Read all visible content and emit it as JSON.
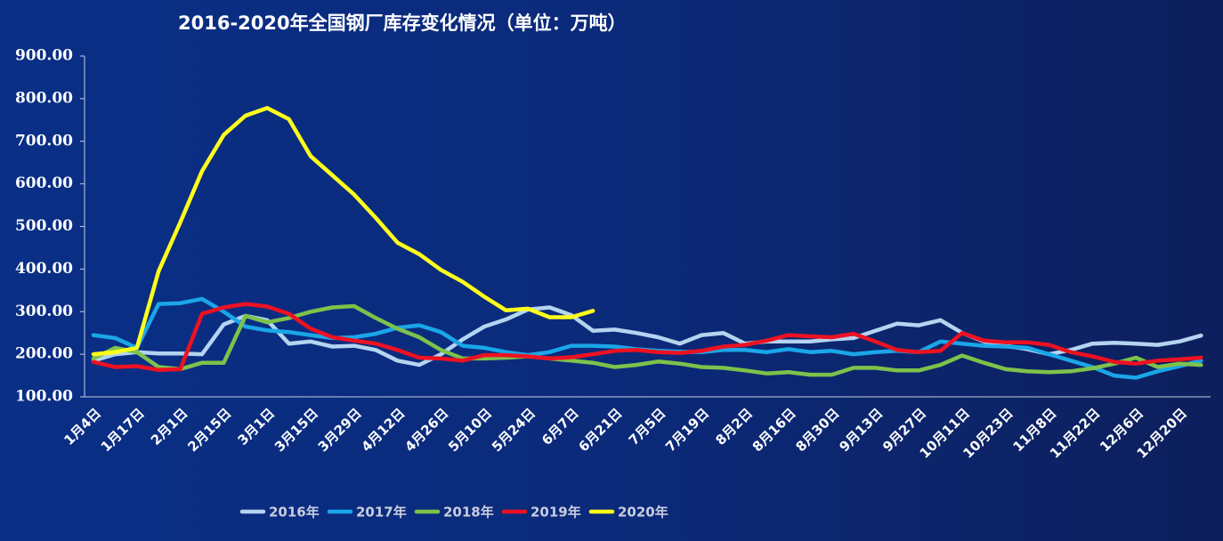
{
  "chart_data": {
    "type": "line",
    "title": "2016-2020年全国钢厂库存变化情况（单位：万吨）",
    "categories": [
      "1月4日",
      null,
      "1月17日",
      null,
      "2月1日",
      null,
      "2月15日",
      null,
      "3月1日",
      null,
      "3月15日",
      null,
      "3月29日",
      null,
      "4月12日",
      null,
      "4月26日",
      null,
      "5月10日",
      null,
      "5月24日",
      null,
      "6月7日",
      null,
      "6月21日",
      null,
      "7月5日",
      null,
      "7月19日",
      null,
      "8月2日",
      null,
      "8月16日",
      null,
      "8月30日",
      null,
      "9月13日",
      null,
      "9月27日",
      null,
      "10月11日",
      null,
      "10月23日",
      null,
      "11月8日",
      null,
      "11月22日",
      null,
      "12月6日",
      null,
      "12月20日",
      null
    ],
    "ylim": [
      100,
      900
    ],
    "yticks": [
      {
        "value": 100,
        "label": "100.00"
      },
      {
        "value": 200,
        "label": "200.00"
      },
      {
        "value": 300,
        "label": "300.00"
      },
      {
        "value": 400,
        "label": "400.00"
      },
      {
        "value": 500,
        "label": "500.00"
      },
      {
        "value": 600,
        "label": "600.00"
      },
      {
        "value": 700,
        "label": "700.00"
      },
      {
        "value": 800,
        "label": "800.00"
      },
      {
        "value": 900,
        "label": "900.00"
      }
    ],
    "grid": false,
    "legend": "bottom",
    "series": [
      {
        "name": "2016年",
        "color": "#b4d4f0",
        "values": [
          185,
          200,
          205,
          202,
          202,
          200,
          270,
          290,
          280,
          225,
          230,
          218,
          220,
          210,
          185,
          175,
          200,
          235,
          265,
          282,
          305,
          310,
          292,
          255,
          258,
          250,
          240,
          225,
          245,
          250,
          225,
          230,
          230,
          230,
          235,
          238,
          255,
          272,
          268,
          280,
          250,
          230,
          220,
          212,
          200,
          210,
          225,
          227,
          225,
          222,
          230,
          244
        ]
      },
      {
        "name": "2017年",
        "color": "#1aa6e8",
        "values": [
          245,
          238,
          215,
          318,
          320,
          330,
          300,
          265,
          256,
          252,
          245,
          238,
          240,
          248,
          262,
          268,
          252,
          220,
          215,
          205,
          198,
          205,
          220,
          220,
          218,
          212,
          208,
          206,
          205,
          210,
          210,
          205,
          212,
          205,
          208,
          200,
          205,
          208,
          205,
          230,
          225,
          220,
          218,
          215,
          200,
          185,
          170,
          150,
          145,
          160,
          172,
          185
        ]
      },
      {
        "name": "2018年",
        "color": "#7dc24a",
        "values": [
          190,
          215,
          205,
          170,
          165,
          180,
          180,
          290,
          275,
          285,
          300,
          310,
          313,
          285,
          260,
          240,
          210,
          190,
          190,
          192,
          195,
          190,
          185,
          180,
          170,
          175,
          183,
          178,
          170,
          168,
          162,
          155,
          158,
          152,
          152,
          168,
          168,
          162,
          162,
          175,
          197,
          180,
          165,
          160,
          158,
          160,
          167,
          178,
          192,
          170,
          178,
          175
        ]
      },
      {
        "name": "2019年",
        "color": "#ee1122",
        "values": [
          182,
          170,
          172,
          163,
          165,
          295,
          310,
          318,
          312,
          295,
          260,
          240,
          232,
          225,
          210,
          192,
          190,
          185,
          198,
          198,
          195,
          190,
          193,
          200,
          208,
          210,
          205,
          203,
          208,
          218,
          222,
          232,
          245,
          242,
          240,
          248,
          230,
          210,
          205,
          208,
          250,
          232,
          228,
          228,
          222,
          205,
          195,
          182,
          178,
          185,
          188,
          192
        ]
      },
      {
        "name": "2020年",
        "color": "#ffff1a",
        "values": [
          200,
          205,
          215,
          395,
          510,
          630,
          715,
          760,
          778,
          752,
          665,
          620,
          575,
          520,
          462,
          435,
          398,
          370,
          335,
          303,
          307,
          287,
          287,
          302,
          null,
          null,
          null,
          null,
          null,
          null,
          null,
          null,
          null,
          null,
          null,
          null,
          null,
          null,
          null,
          null,
          null,
          null,
          null,
          null,
          null,
          null,
          null,
          null,
          null,
          null,
          null,
          null
        ]
      }
    ]
  }
}
